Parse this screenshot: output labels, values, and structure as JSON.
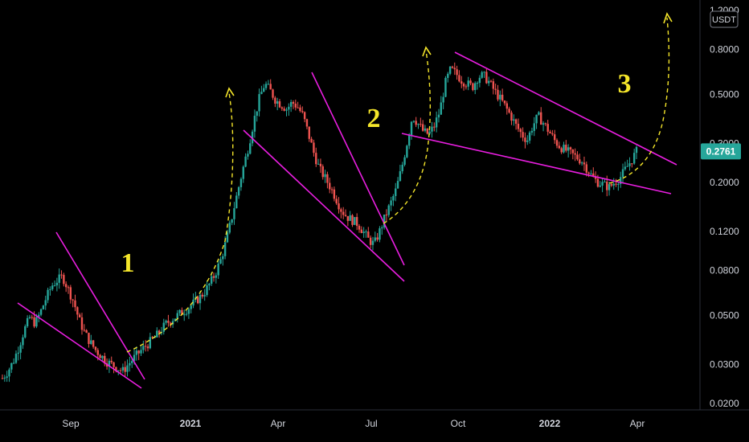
{
  "chart_data": {
    "type": "candlestick",
    "quote_unit": "USDT",
    "current_price": "0.2761",
    "price_scale": "log",
    "ylim": [
      0.0195,
      1.25
    ],
    "price_ticks": [
      "1.2000",
      "0.8000",
      "0.5000",
      "0.3000",
      "0.2000",
      "0.1200",
      "0.0800",
      "0.0500",
      "0.0300",
      "0.0200"
    ],
    "time_ticks": [
      {
        "label": "Sep",
        "bold": false
      },
      {
        "label": "2021",
        "bold": true
      },
      {
        "label": "Apr",
        "bold": false
      },
      {
        "label": "Jul",
        "bold": false
      },
      {
        "label": "Oct",
        "bold": false
      },
      {
        "label": "2022",
        "bold": true
      },
      {
        "label": "Apr",
        "bold": false
      }
    ],
    "wave_labels": [
      "1",
      "2",
      "3"
    ],
    "colors": {
      "background": "#000000",
      "up": "#26a69a",
      "down": "#ef5350",
      "trendline": "#e91ee0",
      "projection": "#f5e62a",
      "price_badge": "#26a69a"
    },
    "series": [
      {
        "name": "price",
        "values": [
          0.026,
          0.028,
          0.031,
          0.036,
          0.043,
          0.049,
          0.046,
          0.052,
          0.06,
          0.068,
          0.072,
          0.075,
          0.066,
          0.058,
          0.048,
          0.042,
          0.038,
          0.035,
          0.033,
          0.031,
          0.03,
          0.029,
          0.028,
          0.03,
          0.032,
          0.034,
          0.036,
          0.038,
          0.04,
          0.043,
          0.046,
          0.048,
          0.05,
          0.052,
          0.054,
          0.057,
          0.06,
          0.064,
          0.07,
          0.078,
          0.09,
          0.11,
          0.14,
          0.18,
          0.23,
          0.29,
          0.38,
          0.48,
          0.56,
          0.52,
          0.47,
          0.45,
          0.43,
          0.46,
          0.44,
          0.4,
          0.33,
          0.27,
          0.23,
          0.21,
          0.19,
          0.17,
          0.15,
          0.14,
          0.135,
          0.13,
          0.12,
          0.11,
          0.105,
          0.12,
          0.14,
          0.16,
          0.185,
          0.23,
          0.3,
          0.4,
          0.37,
          0.34,
          0.33,
          0.36,
          0.42,
          0.56,
          0.65,
          0.62,
          0.58,
          0.56,
          0.54,
          0.6,
          0.61,
          0.57,
          0.52,
          0.48,
          0.44,
          0.4,
          0.36,
          0.33,
          0.31,
          0.36,
          0.4,
          0.37,
          0.34,
          0.31,
          0.29,
          0.28,
          0.27,
          0.26,
          0.25,
          0.23,
          0.21,
          0.2,
          0.195,
          0.19,
          0.2,
          0.21,
          0.23,
          0.25,
          0.276
        ]
      }
    ]
  }
}
